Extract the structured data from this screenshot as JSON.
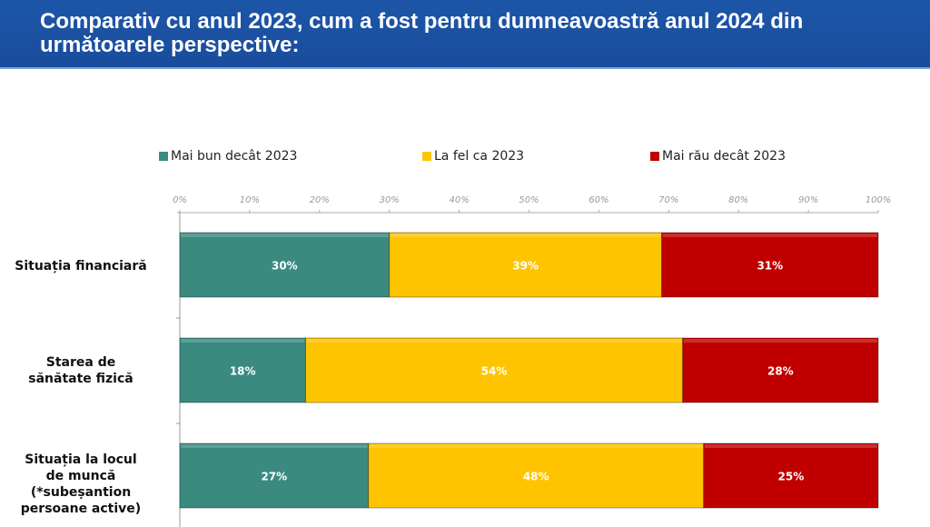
{
  "header": {
    "title": "Comparativ cu anul 2023, cum a fost pentru dumneavoastră anul 2024 din următoarele perspective:"
  },
  "chart_data": {
    "type": "bar",
    "orientation": "horizontal",
    "stacked": "percent",
    "title": "Comparativ cu anul 2023, cum a fost pentru dumneavoastră anul 2024 din următoarele perspective:",
    "categories": [
      "Situația financiară",
      "Starea de sănătate fizică",
      "Situația la locul de muncă (*subeșantion persoane active)"
    ],
    "series": [
      {
        "name": "Mai bun decât 2023",
        "values": [
          30,
          18,
          27
        ],
        "labels": [
          "30%",
          "18%",
          "27%"
        ],
        "color": "#3a8a80"
      },
      {
        "name": "La fel ca 2023",
        "values": [
          39,
          54,
          48
        ],
        "labels": [
          "39%",
          "54%",
          "48%"
        ],
        "color": "#ffc400"
      },
      {
        "name": "Mai rău decât 2023",
        "values": [
          31,
          28,
          25
        ],
        "labels": [
          "31%",
          "28%",
          "25%"
        ],
        "color": "#c00000"
      }
    ],
    "xlim": [
      0,
      100
    ],
    "xticks": [
      "0%",
      "10%",
      "20%",
      "30%",
      "40%",
      "50%",
      "60%",
      "70%",
      "80%",
      "90%",
      "100%"
    ],
    "axis_position": "top",
    "legend": "top",
    "grid": false
  }
}
